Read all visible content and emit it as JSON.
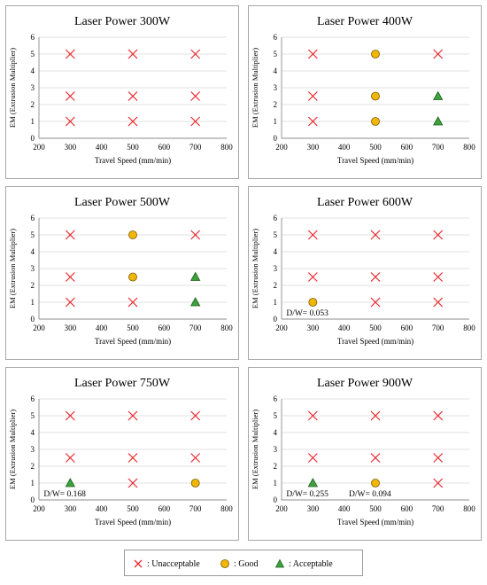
{
  "colors": {
    "unacceptable": "#e8282d",
    "good_fill": "#f2b705",
    "good_stroke": "#7a5a00",
    "acceptable_fill": "#3ca33c",
    "acceptable_stroke": "#1f5f1f",
    "panel_border": "#a6a6a6",
    "grid": "#d9d9d9",
    "axis": "#8c8c8c"
  },
  "legend": {
    "items": [
      {
        "symbol": "x-icon",
        "label": ": Unacceptable"
      },
      {
        "symbol": "circle-icon",
        "label": ": Good"
      },
      {
        "symbol": "triangle-icon",
        "label": ": Acceptable"
      }
    ]
  },
  "chart_data": [
    {
      "type": "scatter",
      "title": "Laser Power 300W",
      "xlabel": "Travel Speed (mm/min)",
      "ylabel": "EM (Extrusion Multiplier)",
      "xlim": [
        200,
        800
      ],
      "ylim": [
        0,
        6
      ],
      "xticks": [
        200,
        300,
        400,
        500,
        600,
        700,
        800
      ],
      "yticks": [
        0,
        1,
        2,
        3,
        4,
        5,
        6
      ],
      "grid": "horizontal",
      "series": [
        {
          "name": "Unacceptable",
          "marker": "x",
          "points": [
            [
              300,
              5
            ],
            [
              500,
              5
            ],
            [
              700,
              5
            ],
            [
              300,
              2.5
            ],
            [
              500,
              2.5
            ],
            [
              700,
              2.5
            ],
            [
              300,
              1
            ],
            [
              500,
              1
            ],
            [
              700,
              1
            ]
          ]
        }
      ],
      "annotations": []
    },
    {
      "type": "scatter",
      "title": "Laser Power 400W",
      "xlabel": "Travel Speed (mm/min)",
      "ylabel": "EM (Extrusion Multiplier)",
      "xlim": [
        200,
        800
      ],
      "ylim": [
        0,
        6
      ],
      "xticks": [
        200,
        300,
        400,
        500,
        600,
        700,
        800
      ],
      "yticks": [
        0,
        1,
        2,
        3,
        4,
        5,
        6
      ],
      "grid": "horizontal",
      "series": [
        {
          "name": "Unacceptable",
          "marker": "x",
          "points": [
            [
              300,
              5
            ],
            [
              700,
              5
            ],
            [
              300,
              2.5
            ],
            [
              300,
              1
            ]
          ]
        },
        {
          "name": "Good",
          "marker": "circle",
          "points": [
            [
              500,
              5
            ],
            [
              500,
              2.5
            ],
            [
              500,
              1
            ]
          ]
        },
        {
          "name": "Acceptable",
          "marker": "triangle",
          "points": [
            [
              700,
              2.5
            ],
            [
              700,
              1
            ]
          ]
        }
      ],
      "annotations": []
    },
    {
      "type": "scatter",
      "title": "Laser Power 500W",
      "xlabel": "Travel Speed (mm/min)",
      "ylabel": "EM (Extrusion Multiplier)",
      "xlim": [
        200,
        800
      ],
      "ylim": [
        0,
        6
      ],
      "xticks": [
        200,
        300,
        400,
        500,
        600,
        700,
        800
      ],
      "yticks": [
        0,
        1,
        2,
        3,
        4,
        5,
        6
      ],
      "grid": "horizontal",
      "series": [
        {
          "name": "Unacceptable",
          "marker": "x",
          "points": [
            [
              300,
              5
            ],
            [
              700,
              5
            ],
            [
              300,
              2.5
            ],
            [
              300,
              1
            ],
            [
              500,
              1
            ]
          ]
        },
        {
          "name": "Good",
          "marker": "circle",
          "points": [
            [
              500,
              5
            ],
            [
              500,
              2.5
            ]
          ]
        },
        {
          "name": "Acceptable",
          "marker": "triangle",
          "points": [
            [
              700,
              2.5
            ],
            [
              700,
              1
            ]
          ]
        }
      ],
      "annotations": []
    },
    {
      "type": "scatter",
      "title": "Laser Power 600W",
      "xlabel": "Travel Speed (mm/min)",
      "ylabel": "EM (Extrusion Multiplier)",
      "xlim": [
        200,
        800
      ],
      "ylim": [
        0,
        6
      ],
      "xticks": [
        200,
        300,
        400,
        500,
        600,
        700,
        800
      ],
      "yticks": [
        0,
        1,
        2,
        3,
        4,
        5,
        6
      ],
      "grid": "horizontal",
      "series": [
        {
          "name": "Unacceptable",
          "marker": "x",
          "points": [
            [
              300,
              5
            ],
            [
              500,
              5
            ],
            [
              700,
              5
            ],
            [
              300,
              2.5
            ],
            [
              500,
              2.5
            ],
            [
              700,
              2.5
            ],
            [
              500,
              1
            ],
            [
              700,
              1
            ]
          ]
        },
        {
          "name": "Good",
          "marker": "circle",
          "points": [
            [
              300,
              1
            ]
          ]
        }
      ],
      "annotations": [
        {
          "text": "D/W= 0.053",
          "x": 300,
          "y": 1
        }
      ]
    },
    {
      "type": "scatter",
      "title": "Laser Power 750W",
      "xlabel": "Travel Speed (mm/min)",
      "ylabel": "EM (Extrusion Multiplier)",
      "xlim": [
        200,
        800
      ],
      "ylim": [
        0,
        6
      ],
      "xticks": [
        200,
        300,
        400,
        500,
        600,
        700,
        800
      ],
      "yticks": [
        0,
        1,
        2,
        3,
        4,
        5,
        6
      ],
      "grid": "horizontal",
      "series": [
        {
          "name": "Unacceptable",
          "marker": "x",
          "points": [
            [
              300,
              5
            ],
            [
              500,
              5
            ],
            [
              700,
              5
            ],
            [
              300,
              2.5
            ],
            [
              500,
              2.5
            ],
            [
              700,
              2.5
            ],
            [
              500,
              1
            ]
          ]
        },
        {
          "name": "Good",
          "marker": "circle",
          "points": [
            [
              700,
              1
            ]
          ]
        },
        {
          "name": "Acceptable",
          "marker": "triangle",
          "points": [
            [
              300,
              1
            ]
          ]
        }
      ],
      "annotations": [
        {
          "text": "D/W= 0.168",
          "x": 300,
          "y": 1
        }
      ]
    },
    {
      "type": "scatter",
      "title": "Laser Power 900W",
      "xlabel": "Travel Speed (mm/min)",
      "ylabel": "EM (Extrusion Multiplier)",
      "xlim": [
        200,
        800
      ],
      "ylim": [
        0,
        6
      ],
      "xticks": [
        200,
        300,
        400,
        500,
        600,
        700,
        800
      ],
      "yticks": [
        0,
        1,
        2,
        3,
        4,
        5,
        6
      ],
      "grid": "horizontal",
      "series": [
        {
          "name": "Unacceptable",
          "marker": "x",
          "points": [
            [
              300,
              5
            ],
            [
              500,
              5
            ],
            [
              700,
              5
            ],
            [
              300,
              2.5
            ],
            [
              500,
              2.5
            ],
            [
              700,
              2.5
            ],
            [
              700,
              1
            ]
          ]
        },
        {
          "name": "Good",
          "marker": "circle",
          "points": [
            [
              500,
              1
            ]
          ]
        },
        {
          "name": "Acceptable",
          "marker": "triangle",
          "points": [
            [
              300,
              1
            ]
          ]
        }
      ],
      "annotations": [
        {
          "text": "D/W= 0.255",
          "x": 300,
          "y": 1
        },
        {
          "text": "D/W= 0.094",
          "x": 500,
          "y": 1
        }
      ]
    }
  ]
}
